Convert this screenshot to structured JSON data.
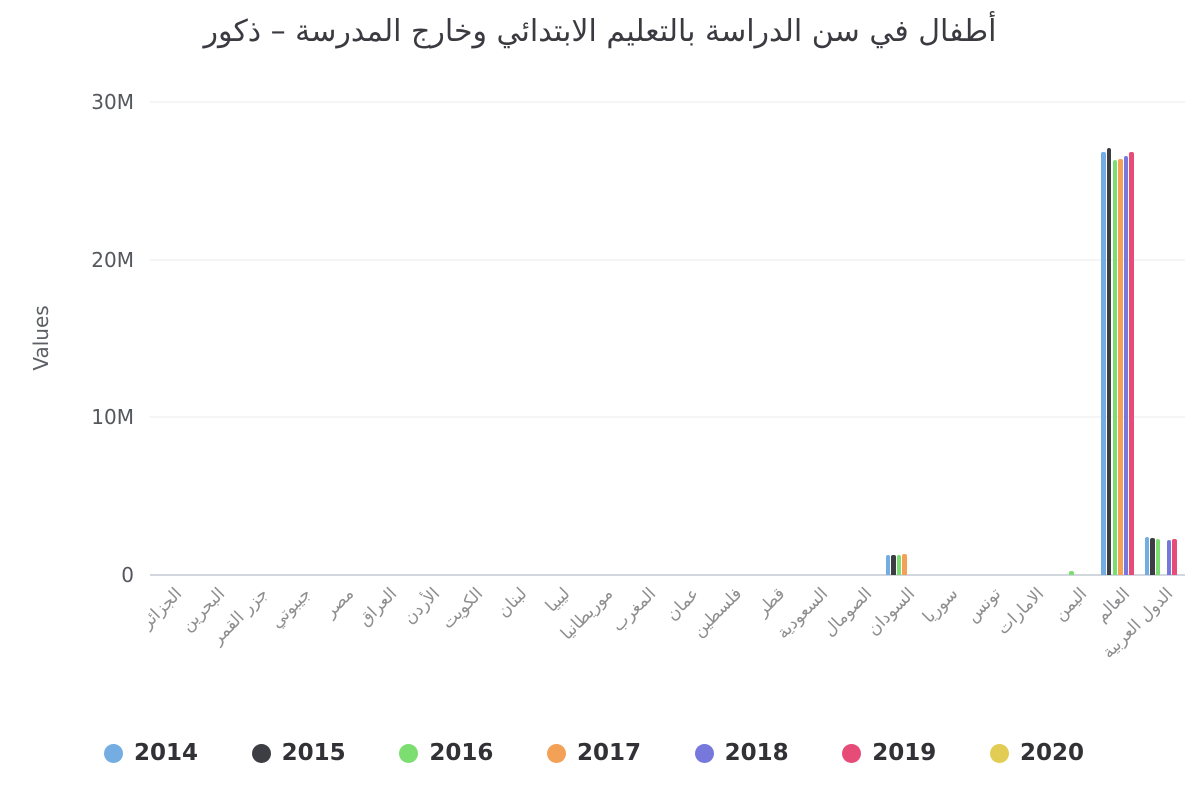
{
  "chart_data": {
    "type": "bar",
    "title": "أطفال في سن الدراسة بالتعليم الابتدائي وخارج المدرسة – ذكور",
    "xlabel": "",
    "ylabel": "Values",
    "ylim": [
      0,
      30000000
    ],
    "yticks": [
      {
        "value": 0,
        "label": "0"
      },
      {
        "value": 10000000,
        "label": "10M"
      },
      {
        "value": 20000000,
        "label": "20M"
      },
      {
        "value": 30000000,
        "label": "30M"
      }
    ],
    "grid": true,
    "legend_position": "bottom",
    "categories": [
      "الجزائر",
      "البحرين",
      "جزر القمر",
      "جيبوتي",
      "مصر",
      "العراق",
      "الأردن",
      "الكويت",
      "لبنان",
      "ليبيا",
      "موريطانيا",
      "المغرب",
      "عمان",
      "فلسطين",
      "قطر",
      "السعودية",
      "الصومال",
      "السودان",
      "سوريا",
      "تونس",
      "الامارات",
      "اليمن",
      "العالم",
      "الدول العربية"
    ],
    "series": [
      {
        "name": "2014",
        "color": "#73ADE2",
        "values": [
          null,
          null,
          null,
          null,
          null,
          null,
          null,
          null,
          null,
          null,
          null,
          null,
          null,
          null,
          null,
          null,
          null,
          1250000,
          null,
          null,
          null,
          null,
          26800000,
          2400000
        ]
      },
      {
        "name": "2015",
        "color": "#3D3D44",
        "values": [
          null,
          null,
          null,
          null,
          null,
          null,
          null,
          null,
          null,
          null,
          null,
          null,
          null,
          null,
          null,
          null,
          null,
          1280000,
          null,
          null,
          null,
          null,
          27100000,
          2350000
        ]
      },
      {
        "name": "2016",
        "color": "#7CDE71",
        "values": [
          null,
          null,
          null,
          null,
          null,
          null,
          null,
          null,
          null,
          null,
          null,
          null,
          null,
          null,
          null,
          null,
          null,
          1300000,
          null,
          null,
          null,
          250000,
          26300000,
          2300000
        ]
      },
      {
        "name": "2017",
        "color": "#F4A158",
        "values": [
          null,
          null,
          null,
          null,
          null,
          null,
          null,
          null,
          null,
          null,
          null,
          null,
          null,
          null,
          null,
          null,
          null,
          1350000,
          null,
          null,
          null,
          null,
          26400000,
          null
        ]
      },
      {
        "name": "2018",
        "color": "#7678DB",
        "values": [
          null,
          null,
          null,
          null,
          null,
          null,
          null,
          null,
          null,
          null,
          null,
          null,
          null,
          null,
          null,
          null,
          null,
          null,
          null,
          null,
          null,
          null,
          26600000,
          2250000
        ]
      },
      {
        "name": "2019",
        "color": "#E74C78",
        "values": [
          null,
          null,
          null,
          null,
          null,
          null,
          null,
          null,
          null,
          null,
          null,
          null,
          null,
          null,
          null,
          null,
          null,
          null,
          null,
          null,
          null,
          null,
          26800000,
          2300000
        ]
      },
      {
        "name": "2020",
        "color": "#E2CC53",
        "values": [
          null,
          null,
          null,
          null,
          null,
          null,
          null,
          null,
          null,
          null,
          null,
          null,
          null,
          null,
          null,
          null,
          null,
          null,
          null,
          null,
          null,
          null,
          null,
          null
        ]
      }
    ]
  }
}
